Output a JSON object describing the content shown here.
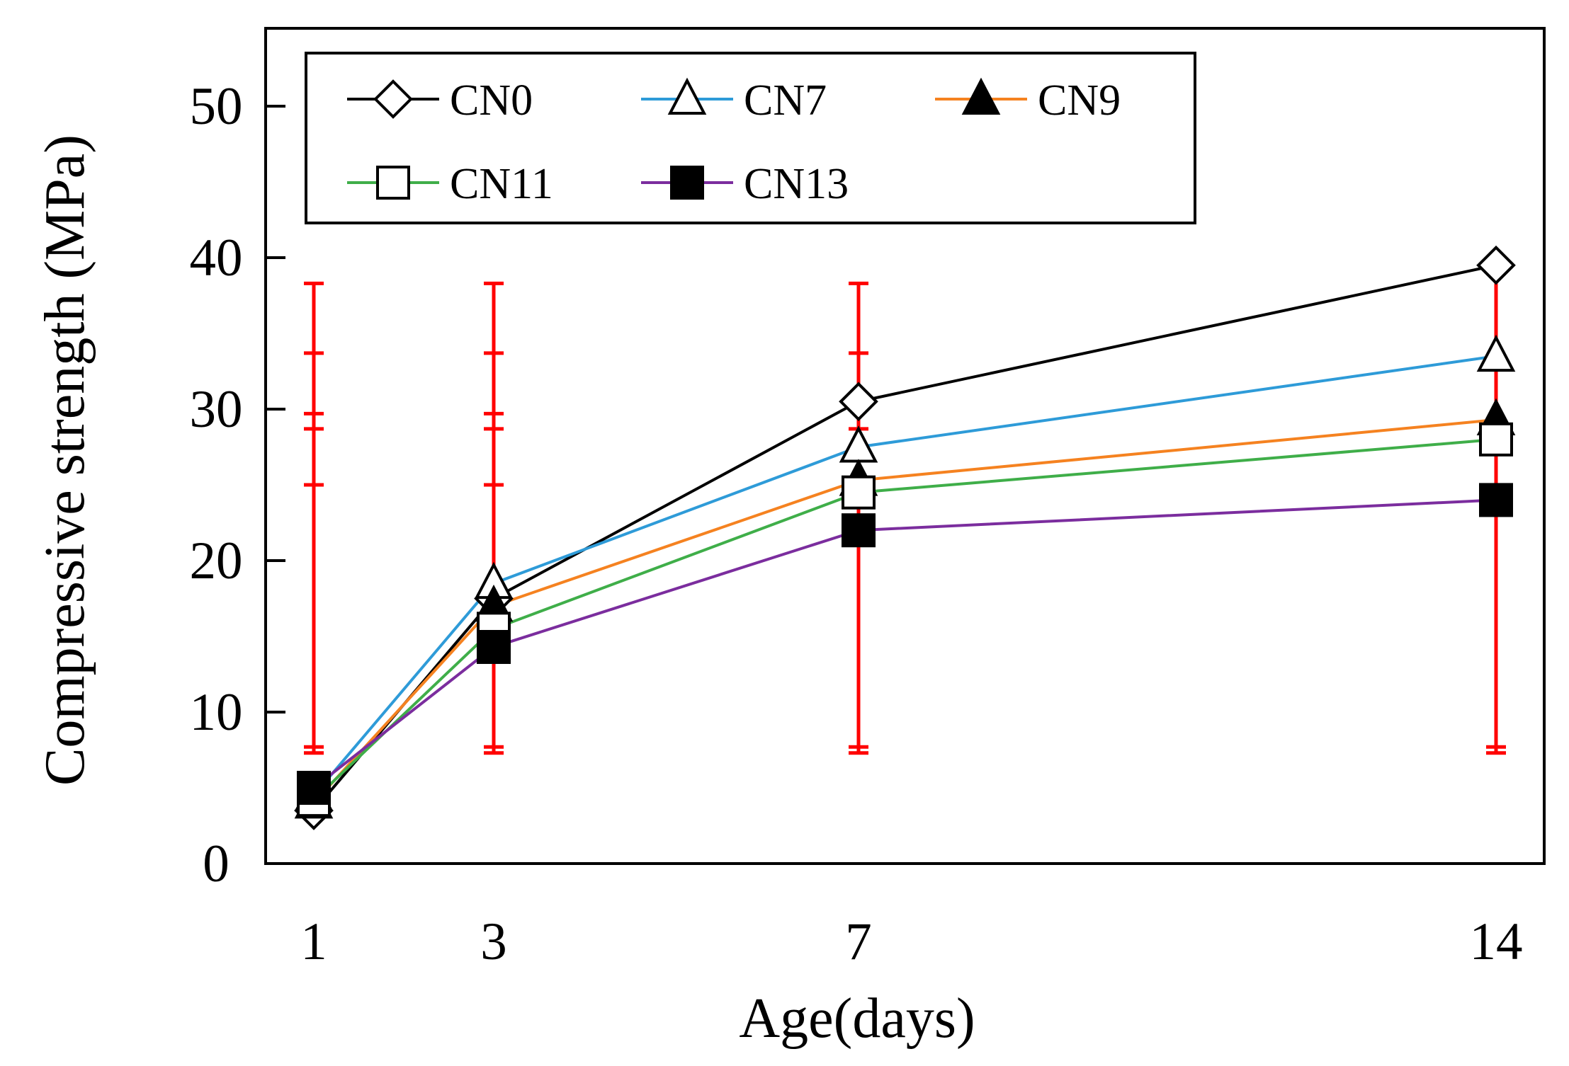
{
  "chart_data": {
    "type": "line",
    "title": "",
    "xlabel": "Age(days)",
    "ylabel": "Compressive strength (MPa)",
    "x": [
      1,
      3,
      7,
      14
    ],
    "x_tick_labels": [
      "1",
      "3",
      "7",
      "14"
    ],
    "ylim": [
      0,
      55
    ],
    "y_ticks": [
      0,
      10,
      20,
      30,
      40,
      50
    ],
    "y_tick_labels": [
      "0",
      "10",
      "20",
      "30",
      "40",
      "50"
    ],
    "grid": false,
    "legend_position": "top",
    "series": [
      {
        "name": "CN0",
        "color": "#000000",
        "marker": "diamond",
        "values": [
          3.5,
          17.5,
          30.5,
          39.5
        ]
      },
      {
        "name": "CN7",
        "color": "#2E9BD8",
        "marker": "triangle-open",
        "values": [
          4.5,
          18.5,
          27.5,
          33.5
        ]
      },
      {
        "name": "CN9",
        "color": "#F58220",
        "marker": "triangle-filled",
        "values": [
          4.0,
          17.0,
          25.3,
          29.3
        ]
      },
      {
        "name": "CN11",
        "color": "#3FAE49",
        "marker": "square-open",
        "values": [
          4.2,
          15.5,
          24.5,
          28.0
        ]
      },
      {
        "name": "CN13",
        "color": "#7B2D9E",
        "marker": "square-filled",
        "values": [
          5.0,
          14.3,
          22.0,
          24.0
        ]
      }
    ],
    "error_bars": {
      "color": "#FF0000",
      "x": [
        1,
        3,
        7,
        14
      ],
      "lower": [
        7.3,
        7.3,
        7.3,
        7.3
      ],
      "upper": [
        38.3,
        38.3,
        38.3,
        38.3
      ],
      "caps": {
        "1": [
          7.3,
          7.7,
          25.0,
          28.7,
          29.7,
          33.7,
          38.3
        ],
        "3": [
          7.3,
          7.7,
          25.0,
          28.7,
          29.7,
          33.7,
          38.3
        ],
        "7": [
          7.3,
          7.7,
          28.7,
          33.7,
          38.3
        ],
        "14": [
          7.3,
          7.7
        ]
      }
    }
  }
}
